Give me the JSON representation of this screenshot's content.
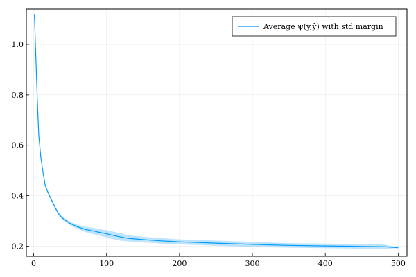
{
  "chart_data": {
    "type": "line",
    "title": "",
    "xlabel": "",
    "ylabel": "",
    "xlim": [
      -10,
      512
    ],
    "ylim": [
      0.16,
      1.14
    ],
    "grid": true,
    "legend_position": "top-right",
    "x_ticks": [
      0,
      100,
      200,
      300,
      400,
      500
    ],
    "x_tick_labels": [
      "0",
      "100",
      "200",
      "300",
      "400",
      "500"
    ],
    "y_ticks": [
      0.2,
      0.4,
      0.6,
      0.8,
      1.0
    ],
    "y_tick_labels": [
      "0.2",
      "0.4",
      "0.6",
      "0.8",
      "1.0"
    ],
    "series": [
      {
        "name": "Average ψ(y,ŷ) with std margin",
        "color": "#009AFA",
        "band_color": "#87CEFA",
        "x": [
          1,
          3,
          5,
          7,
          10,
          13,
          16,
          20,
          25,
          30,
          35,
          40,
          50,
          60,
          70,
          80,
          90,
          100,
          110,
          120,
          130,
          150,
          175,
          200,
          250,
          300,
          350,
          400,
          450,
          480,
          490,
          500
        ],
        "y": [
          1.12,
          0.95,
          0.78,
          0.64,
          0.55,
          0.49,
          0.44,
          0.41,
          0.38,
          0.35,
          0.325,
          0.31,
          0.29,
          0.277,
          0.267,
          0.261,
          0.255,
          0.249,
          0.242,
          0.236,
          0.231,
          0.226,
          0.221,
          0.217,
          0.212,
          0.207,
          0.203,
          0.201,
          0.199,
          0.198,
          0.196,
          0.194
        ],
        "std": [
          0.005,
          0.005,
          0.005,
          0.005,
          0.005,
          0.005,
          0.005,
          0.005,
          0.006,
          0.006,
          0.006,
          0.006,
          0.007,
          0.008,
          0.01,
          0.012,
          0.013,
          0.014,
          0.015,
          0.015,
          0.012,
          0.011,
          0.011,
          0.01,
          0.01,
          0.01,
          0.009,
          0.009,
          0.009,
          0.009,
          0.005,
          0.002
        ]
      }
    ]
  }
}
